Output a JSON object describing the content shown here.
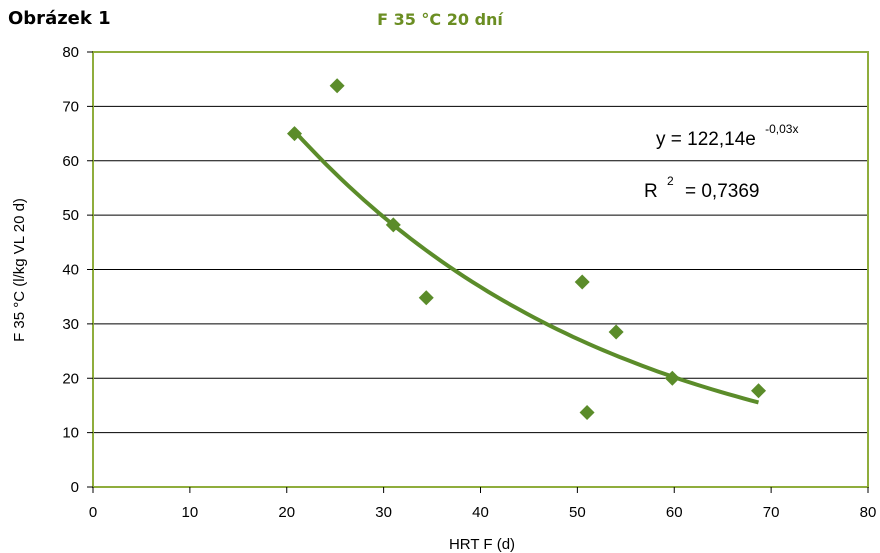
{
  "figure_label": "Obrázek 1",
  "chart_data": {
    "type": "scatter",
    "title": "F 35 °C 20 dní",
    "xlabel": "HRT F (d)",
    "ylabel": "F 35 °C (l/kg VL 20 d)",
    "xlim": [
      0,
      80
    ],
    "ylim": [
      0,
      80
    ],
    "xticks": [
      "0",
      "10",
      "20",
      "30",
      "40",
      "50",
      "60",
      "70",
      "80"
    ],
    "yticks": [
      "0",
      "10",
      "20",
      "30",
      "40",
      "50",
      "60",
      "70",
      "80"
    ],
    "grid": "horizontal",
    "series": [
      {
        "points": [
          {
            "x": 20.8,
            "y": 65
          },
          {
            "x": 25.2,
            "y": 73.8
          },
          {
            "x": 31,
            "y": 48.2
          },
          {
            "x": 34.4,
            "y": 34.8
          },
          {
            "x": 50.5,
            "y": 37.7
          },
          {
            "x": 51,
            "y": 13.7
          },
          {
            "x": 54,
            "y": 28.5
          },
          {
            "x": 59.8,
            "y": 20
          },
          {
            "x": 68.7,
            "y": 17.7
          }
        ]
      }
    ],
    "trendline": {
      "type": "exponential",
      "a": 122.14,
      "b": -0.03,
      "x_range": [
        20.8,
        68.7
      ],
      "equation_base": "y = 122,14e",
      "equation_exponent": "-0,03x",
      "r2_base": "R",
      "r2_exponent": "2",
      "r2_value": "= 0,7369"
    },
    "colors": {
      "marker": "#5b8c2a",
      "trendline": "#5b8c2a",
      "plot_border": "#8fad3c",
      "gridline": "#000000",
      "title": "#6b8e23"
    }
  }
}
